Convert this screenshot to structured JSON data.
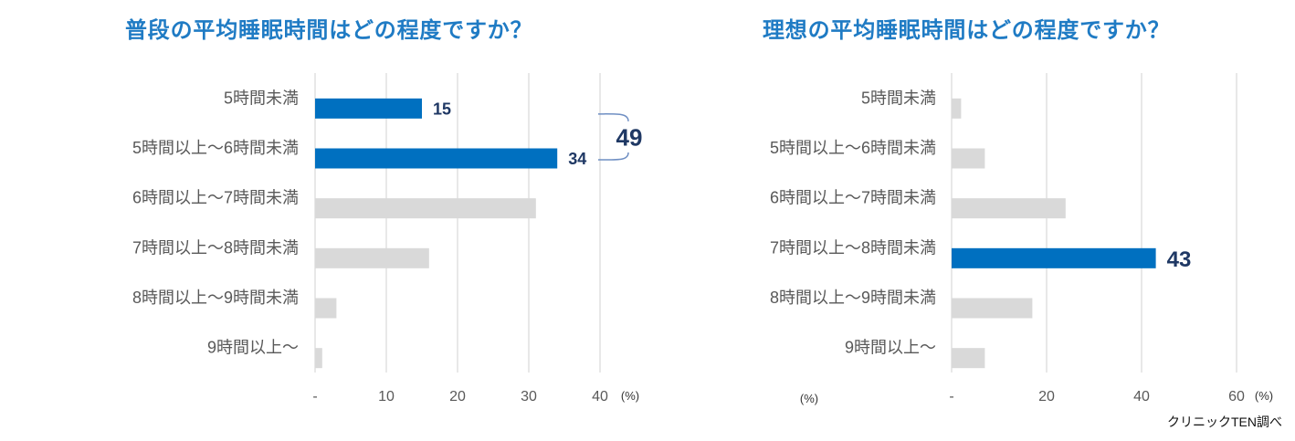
{
  "chart_data": [
    {
      "type": "bar",
      "horizontal": true,
      "title": "普段の平均睡眠時間はどの程度ですか？",
      "categories": [
        "5時間未満",
        "5時間以上～6時間未満",
        "6時間以上～7時間未満",
        "7時間以上～8時間未満",
        "8時間以上～9時間未満",
        "9時間以上～"
      ],
      "values": [
        15,
        34,
        31,
        16,
        3,
        1
      ],
      "highlighted": [
        0,
        1
      ],
      "labeled": [
        0,
        1
      ],
      "xlim": [
        0,
        40
      ],
      "xticks": {
        "values": [
          0,
          10,
          20,
          30,
          40
        ],
        "labels": [
          "-",
          "10",
          "20",
          "30",
          "40"
        ]
      },
      "xunit": "(%)",
      "grid": true,
      "annotation": {
        "label": "49",
        "spans": [
          0,
          1
        ]
      }
    },
    {
      "type": "bar",
      "horizontal": true,
      "title": "理想の平均睡眠時間はどの程度ですか？",
      "categories": [
        "5時間未満",
        "5時間以上～6時間未満",
        "6時間以上～7時間未満",
        "7時間以上～8時間未満",
        "8時間以上～9時間未満",
        "9時間以上～"
      ],
      "values": [
        2,
        7,
        24,
        43,
        17,
        7
      ],
      "highlighted": [
        3
      ],
      "labeled": [
        3
      ],
      "xlim": [
        0,
        60
      ],
      "xticks": {
        "values": [
          0,
          20,
          40,
          60
        ],
        "labels": [
          "-",
          "20",
          "40",
          "60"
        ]
      },
      "xunit": "(%)",
      "unit_note": "(%)",
      "grid": true
    }
  ],
  "source": "クリニックTEN調べ",
  "colors": {
    "title": "#1f7bc4",
    "highlight_bar": "#0070c0",
    "bar": "#d9d9d9",
    "gridline": "#d9d9d9",
    "data_label": "#1f3864",
    "annotation_bracket": "#6f8fc3",
    "axis_text": "#595959"
  }
}
